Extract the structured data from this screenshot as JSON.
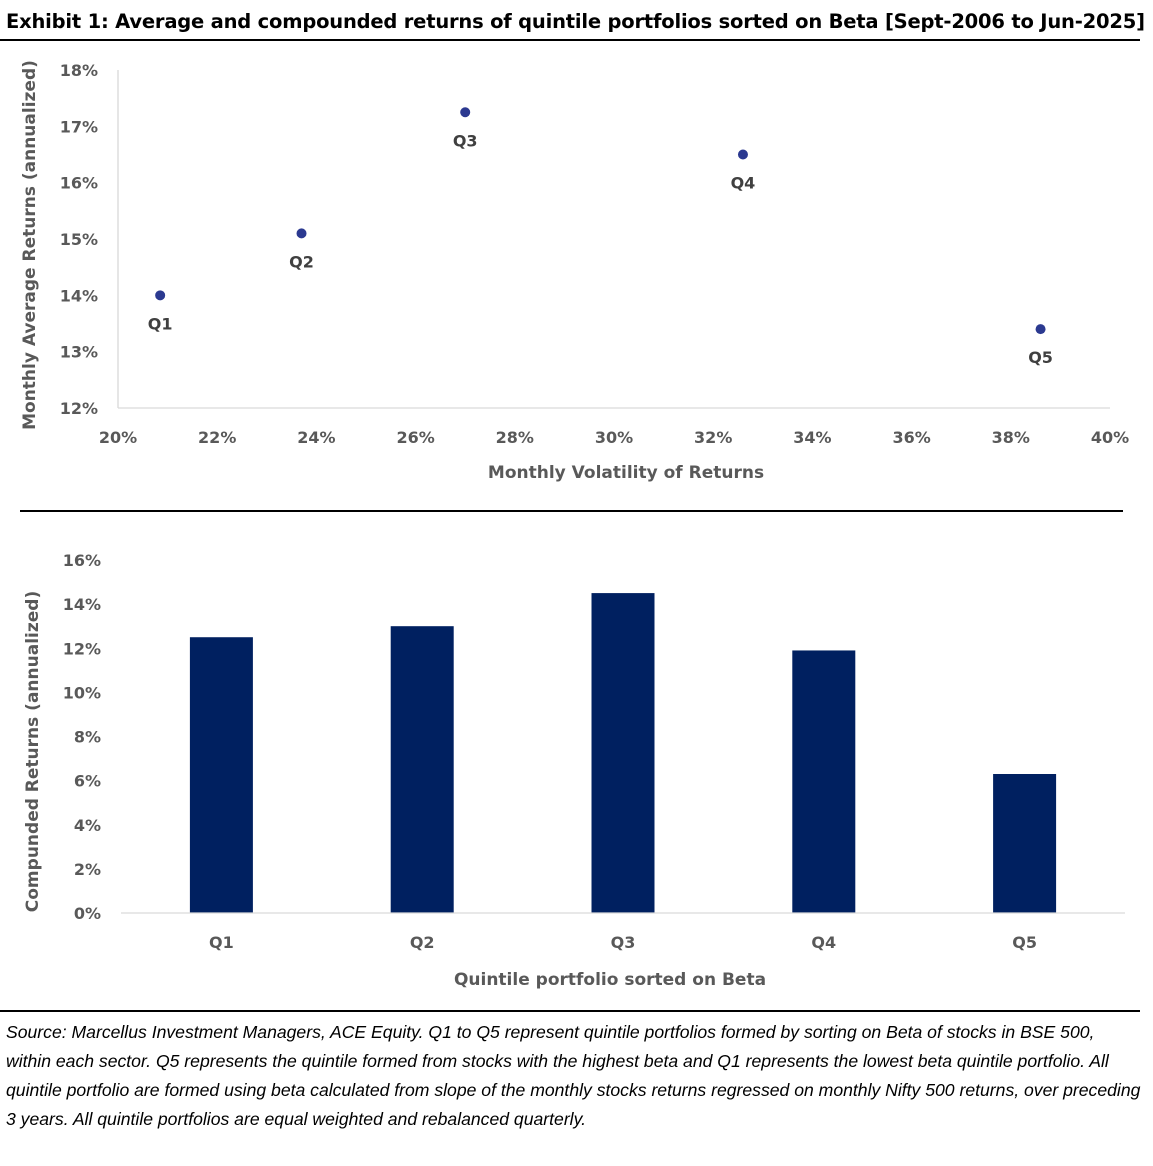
{
  "title": "Exhibit 1: Average and compounded returns of quintile portfolios sorted on Beta [Sept-2006 to Jun-2025]",
  "colors": {
    "marker": "#2B3990",
    "bar": "#002060",
    "axis": "#D9D9D9",
    "text": "#595959"
  },
  "chart_data": [
    {
      "type": "scatter",
      "xlabel": "Monthly Volatility of Returns",
      "ylabel": "Monthly Average Returns (annualized)",
      "xlim": [
        20,
        40
      ],
      "ylim": [
        12,
        18
      ],
      "x_ticks": [
        "20%",
        "22%",
        "24%",
        "26%",
        "28%",
        "30%",
        "32%",
        "34%",
        "36%",
        "38%",
        "40%"
      ],
      "y_ticks": [
        "12%",
        "13%",
        "14%",
        "15%",
        "16%",
        "17%",
        "18%"
      ],
      "points": [
        {
          "label": "Q1",
          "x": 20.85,
          "y": 14.0
        },
        {
          "label": "Q2",
          "x": 23.7,
          "y": 15.1
        },
        {
          "label": "Q3",
          "x": 27.0,
          "y": 17.25
        },
        {
          "label": "Q4",
          "x": 32.6,
          "y": 16.5
        },
        {
          "label": "Q5",
          "x": 38.6,
          "y": 13.4
        }
      ]
    },
    {
      "type": "bar",
      "xlabel": "Quintile portfolio sorted on Beta",
      "ylabel": "Compunded Returns (annualized)",
      "ylim": [
        0,
        16
      ],
      "y_ticks": [
        "0%",
        "2%",
        "4%",
        "6%",
        "8%",
        "10%",
        "12%",
        "14%",
        "16%"
      ],
      "categories": [
        "Q1",
        "Q2",
        "Q3",
        "Q4",
        "Q5"
      ],
      "values": [
        12.5,
        13.0,
        14.5,
        11.9,
        6.3
      ]
    }
  ],
  "source": "Source: Marcellus Investment Managers, ACE Equity.  Q1 to Q5 represent quintile portfolios formed by sorting on Beta of stocks in BSE 500, within each sector. Q5 represents the quintile formed from stocks with the highest beta and Q1 represents the lowest beta quintile portfolio. All quintile portfolio are formed using beta calculated from slope of the monthly stocks returns regressed on monthly Nifty 500 returns, over preceding 3 years. All quintile portfolios are equal weighted and rebalanced quarterly."
}
